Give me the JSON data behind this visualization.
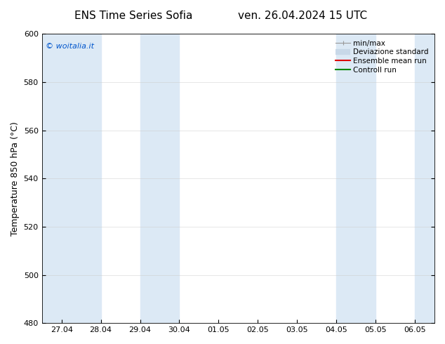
{
  "title_left": "ENS Time Series Sofia",
  "title_right": "ven. 26.04.2024 15 UTC",
  "ylabel": "Temperature 850 hPa (°C)",
  "ylim": [
    480,
    600
  ],
  "yticks": [
    480,
    500,
    520,
    540,
    560,
    580,
    600
  ],
  "x_tick_labels": [
    "27.04",
    "28.04",
    "29.04",
    "30.04",
    "01.05",
    "02.05",
    "03.05",
    "04.05",
    "05.05",
    "06.05"
  ],
  "x_tick_positions": [
    0,
    1,
    2,
    3,
    4,
    5,
    6,
    7,
    8,
    9
  ],
  "xlim": [
    -0.5,
    9.5
  ],
  "bg_color": "#ffffff",
  "plot_bg_color": "#ffffff",
  "shaded_bands": [
    {
      "x_start": -0.5,
      "x_end": 1.0,
      "color": "#dce9f5"
    },
    {
      "x_start": 2.0,
      "x_end": 3.0,
      "color": "#dce9f5"
    },
    {
      "x_start": 7.0,
      "x_end": 8.0,
      "color": "#dce9f5"
    },
    {
      "x_start": 9.0,
      "x_end": 9.5,
      "color": "#dce9f5"
    }
  ],
  "legend_items": [
    {
      "label": "min/max",
      "color": "#aaaaaa",
      "lw": 1
    },
    {
      "label": "Deviazione standard",
      "color": "#c8d8e8",
      "lw": 6
    },
    {
      "label": "Ensemble mean run",
      "color": "#dd0000",
      "lw": 1.5
    },
    {
      "label": "Controll run",
      "color": "#008800",
      "lw": 1.5
    }
  ],
  "watermark_text": "© woitalia.it",
  "watermark_color": "#0055cc",
  "title_fontsize": 11,
  "axis_label_fontsize": 9,
  "tick_fontsize": 8,
  "legend_fontsize": 7.5,
  "spine_color": "#000000",
  "grid_color": "#cccccc",
  "grid_alpha": 0.7
}
